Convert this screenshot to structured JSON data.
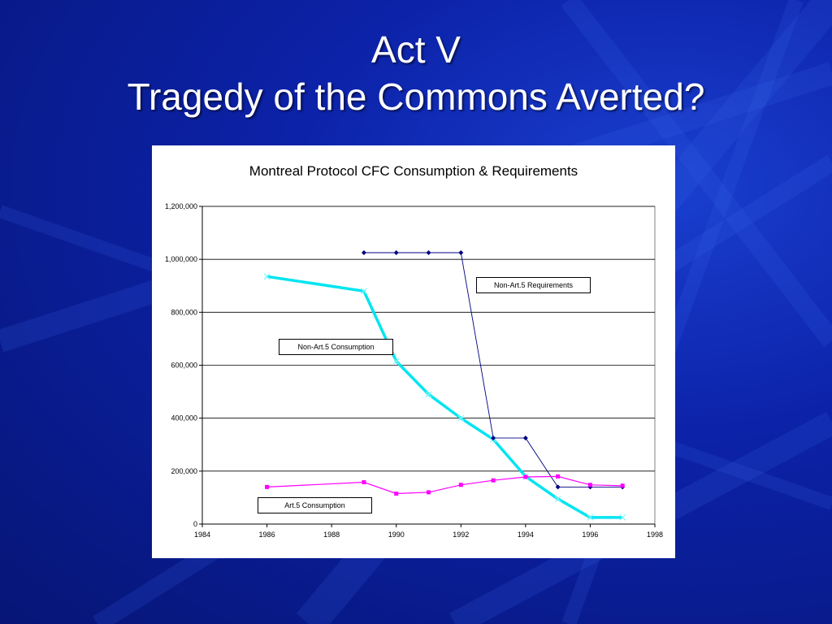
{
  "slide": {
    "title_line1": "Act V",
    "title_line2": "Tragedy of the Commons Averted?"
  },
  "chart_data": {
    "type": "line",
    "title": "Montreal Protocol CFC Consumption & Requirements",
    "xlabel": "",
    "ylabel": "",
    "xlim": [
      1984,
      1998
    ],
    "ylim": [
      0,
      1200000
    ],
    "x_ticks": [
      1984,
      1986,
      1988,
      1990,
      1992,
      1994,
      1996,
      1998
    ],
    "y_ticks": [
      0,
      200000,
      400000,
      600000,
      800000,
      1000000,
      1200000
    ],
    "y_tick_labels": [
      "0",
      "200,000",
      "400,000",
      "600,000",
      "800,000",
      "1,000,000",
      "1,200,000"
    ],
    "grid": "horizontal",
    "legend": "none",
    "series": [
      {
        "color": "#00e5f0",
        "marker": "x",
        "x": [
          1986,
          1989,
          1990,
          1991,
          1992,
          1993,
          1994,
          1995,
          1996,
          1997
        ],
        "y": [
          935000,
          880000,
          615000,
          490000,
          400000,
          320000,
          180000,
          95000,
          25000,
          25000
        ]
      },
      {
        "color": "#000080",
        "marker": "diamond",
        "x": [
          1989,
          1990,
          1991,
          1992,
          1993,
          1994,
          1995,
          1996,
          1997
        ],
        "y": [
          1025000,
          1025000,
          1025000,
          1025000,
          325000,
          325000,
          140000,
          140000,
          140000
        ]
      },
      {
        "color": "#ff00ff",
        "marker": "square",
        "x": [
          1986,
          1989,
          1990,
          1991,
          1992,
          1993,
          1994,
          1995,
          1996,
          1997
        ],
        "y": [
          140000,
          158000,
          115000,
          120000,
          148000,
          165000,
          178000,
          180000,
          148000,
          145000
        ]
      }
    ],
    "annotations": [
      {
        "text": "Non-Art.5 Requirements"
      },
      {
        "text": "Non-Art.5 Consumption"
      },
      {
        "text": "Art.5 Consumption"
      }
    ]
  }
}
